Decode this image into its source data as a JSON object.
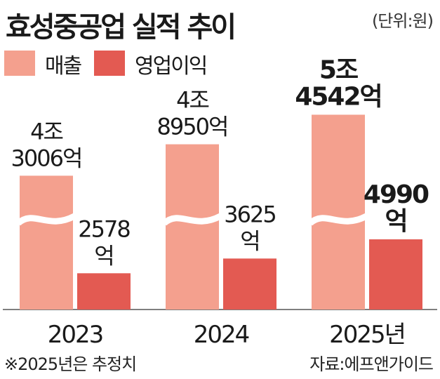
{
  "title": "효성중공업 실적 추이",
  "unit": "(단위:원)",
  "legend": {
    "items": [
      {
        "label": "매출",
        "color": "#f4a08e"
      },
      {
        "label": "영업이익",
        "color": "#e35a52"
      }
    ]
  },
  "chart_data": {
    "type": "bar",
    "axis_break_on_series": "매출",
    "categories": [
      "2023",
      "2024",
      "2025년"
    ],
    "series": [
      {
        "name": "매출",
        "color": "#f4a08e",
        "values": [
          43006,
          48950,
          54542
        ],
        "labels": [
          [
            "4조",
            "3006억"
          ],
          [
            "4조",
            "8950억"
          ],
          [
            "5조",
            "4542억"
          ]
        ]
      },
      {
        "name": "영업이익",
        "color": "#e35a52",
        "values": [
          2578,
          3625,
          4990
        ],
        "labels": [
          [
            "2578",
            "억"
          ],
          [
            "3625",
            "억"
          ],
          [
            "4990",
            "억"
          ]
        ]
      }
    ],
    "bold_labels_category": "2025년",
    "value_unit": "억 원"
  },
  "footnote": "※2025년은 추정치",
  "source": "자료:에프앤가이드"
}
